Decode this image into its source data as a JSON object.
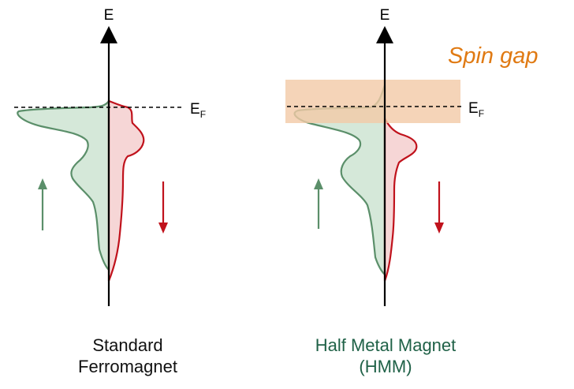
{
  "axis_label": "E",
  "fermi_label": {
    "main": "E",
    "sub": "F"
  },
  "spin_gap": {
    "label": "Spin gap"
  },
  "panels": [
    {
      "caption_line1": "Standard",
      "caption_line2": "Ferromagnet"
    },
    {
      "caption_line1": "Half Metal Magnet",
      "caption_line2": "(HMM)"
    }
  ],
  "colors": {
    "spin_up_line": "#5b8f6a",
    "spin_up_fill": "#d5e8d9",
    "spin_down_line": "#c0121c",
    "spin_down_fill": "#f6d6d6",
    "spin_gap_band": "#f3c9a6",
    "spin_gap_text": "#e07a13",
    "hmm_caption": "#1f6147",
    "axis": "#000000"
  },
  "icons": {
    "spin_up": "arrow-up-icon",
    "spin_down": "arrow-down-icon"
  }
}
